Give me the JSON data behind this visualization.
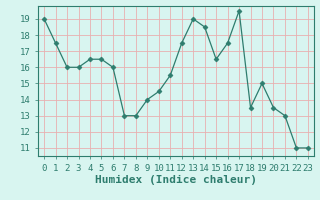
{
  "x": [
    0,
    1,
    2,
    3,
    4,
    5,
    6,
    7,
    8,
    9,
    10,
    11,
    12,
    13,
    14,
    15,
    16,
    17,
    18,
    19,
    20,
    21,
    22,
    23
  ],
  "y": [
    19,
    17.5,
    16,
    16,
    16.5,
    16.5,
    16,
    13,
    13,
    14,
    14.5,
    15.5,
    17.5,
    19,
    18.5,
    16.5,
    17.5,
    19.5,
    13.5,
    15,
    13.5,
    13,
    11,
    11
  ],
  "line_color": "#2e7d6e",
  "marker": "D",
  "marker_size": 2.5,
  "bg_color": "#d8f5f0",
  "grid_color": "#e8b0b0",
  "xlabel": "Humidex (Indice chaleur)",
  "xlim": [
    -0.5,
    23.5
  ],
  "ylim": [
    10.5,
    19.8
  ],
  "yticks": [
    11,
    12,
    13,
    14,
    15,
    16,
    17,
    18,
    19
  ],
  "xtick_labels": [
    "0",
    "1",
    "2",
    "3",
    "4",
    "5",
    "6",
    "7",
    "8",
    "9",
    "10",
    "11",
    "12",
    "13",
    "14",
    "15",
    "16",
    "17",
    "18",
    "19",
    "20",
    "21",
    "22",
    "23"
  ],
  "tick_fontsize": 6.5,
  "label_fontsize": 8
}
